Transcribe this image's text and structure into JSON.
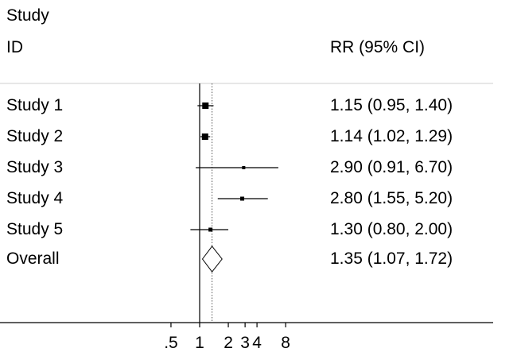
{
  "chart_data": {
    "type": "forest",
    "header": {
      "study_col_line1": "Study",
      "study_col_line2": "ID",
      "effect_col": "RR (95% CI)"
    },
    "studies": [
      {
        "label": "Study 1",
        "rr": 1.15,
        "lo": 0.95,
        "hi": 1.4,
        "ci_text": "1.15 (0.95, 1.40)",
        "weight": "large"
      },
      {
        "label": "Study 2",
        "rr": 1.14,
        "lo": 1.02,
        "hi": 1.29,
        "ci_text": "1.14 (1.02, 1.29)",
        "weight": "large"
      },
      {
        "label": "Study 3",
        "rr": 2.9,
        "lo": 0.91,
        "hi": 6.7,
        "ci_text": "2.90 (0.91, 6.70)",
        "weight": "small"
      },
      {
        "label": "Study 4",
        "rr": 2.8,
        "lo": 1.55,
        "hi": 5.2,
        "ci_text": "2.80 (1.55, 5.20)",
        "weight": "medium"
      },
      {
        "label": "Study 5",
        "rr": 1.3,
        "lo": 0.8,
        "hi": 2.0,
        "ci_text": "1.30 (0.80, 2.00)",
        "weight": "medium"
      }
    ],
    "overall": {
      "label": "Overall",
      "rr": 1.35,
      "lo": 1.07,
      "hi": 1.72,
      "ci_text": "1.35 (1.07, 1.72)"
    },
    "x_axis": {
      "scale": "log",
      "ticks": [
        {
          "value": 0.5,
          "label": ".5"
        },
        {
          "value": 1,
          "label": "1"
        },
        {
          "value": 2,
          "label": "2"
        },
        {
          "value": 3,
          "label": "3"
        },
        {
          "value": 4,
          "label": "4"
        },
        {
          "value": 8,
          "label": "8"
        }
      ],
      "null_line": 1,
      "overall_reference_line": 1.35
    }
  }
}
